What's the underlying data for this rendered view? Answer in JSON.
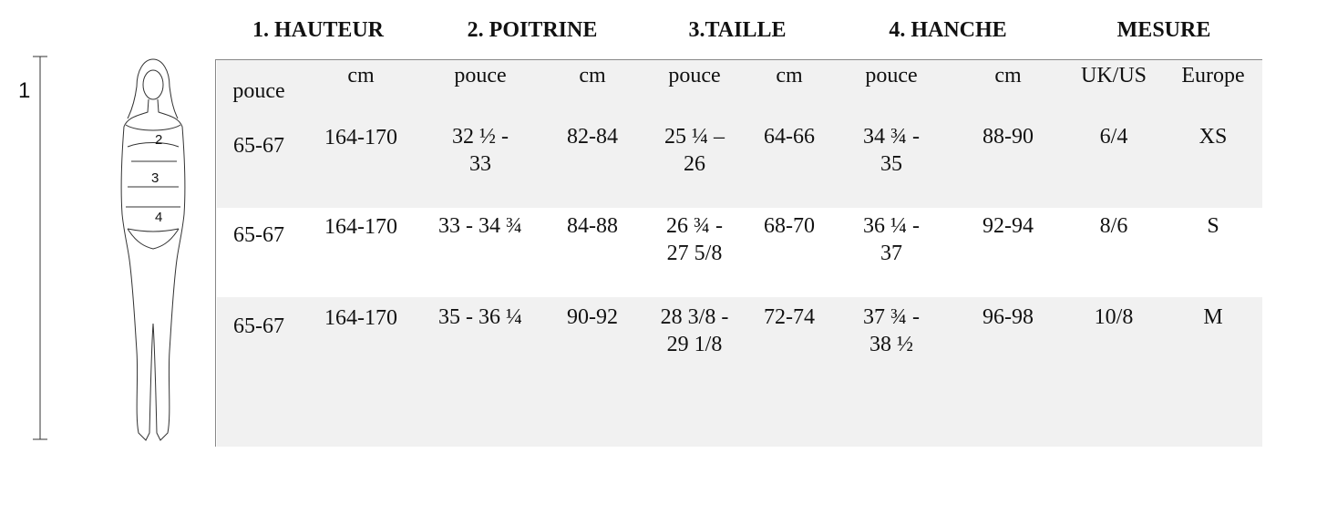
{
  "figure": {
    "height_label": "1",
    "labels": [
      "2",
      "3",
      "4"
    ]
  },
  "table": {
    "groups": [
      "1. HAUTEUR",
      "2. POITRINE",
      "3.TAILLE",
      "4. HANCHE",
      "MESURE"
    ],
    "columns": [
      "pouce",
      "cm",
      "pouce",
      "cm",
      "pouce",
      "cm",
      "pouce",
      "cm",
      "UK/US",
      "Europe"
    ],
    "rows": [
      [
        "65-67",
        "164-170",
        "32 ½  -\n33",
        "82-84",
        "25 ¼ –\n26",
        "64-66",
        "34 ¾  -\n35",
        "88-90",
        "6/4",
        "XS"
      ],
      [
        "65-67",
        "164-170",
        "33 - 34 ¾",
        "84-88",
        "26 ¾  -\n27 5/8",
        "68-70",
        "36 ¼  -\n37",
        "92-94",
        "8/6",
        "S"
      ],
      [
        "65-67",
        "164-170",
        "35 - 36 ¼",
        "90-92",
        "28 3/8 -\n29 1/8",
        "72-74",
        "37 ¾  -\n38 ½",
        "96-98",
        "10/8",
        "M"
      ]
    ]
  }
}
